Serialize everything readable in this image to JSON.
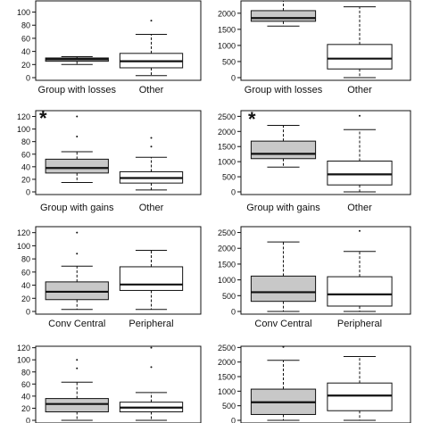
{
  "colors": {
    "highlight_fill": "#c8c8c8",
    "plain_fill": "#ffffff",
    "ink": "#111111"
  },
  "chart_data": [
    {
      "type": "box",
      "panel": "row1-left",
      "ylim": [
        0,
        120
      ],
      "yticks": [
        0,
        20,
        40,
        60,
        80,
        100
      ],
      "categories": [
        "Group with losses",
        "Other"
      ],
      "marker": "",
      "boxes": [
        {
          "label": "Group with losses",
          "fill": "shaded",
          "whisker_low": 20,
          "q1": 25,
          "median": 28,
          "q3": 30,
          "whisker_high": 32,
          "outliers": []
        },
        {
          "label": "Other",
          "fill": "plain",
          "whisker_low": 3,
          "q1": 15,
          "median": 25,
          "q3": 37,
          "whisker_high": 66,
          "outliers": [
            87
          ]
        }
      ]
    },
    {
      "type": "box",
      "panel": "row1-right",
      "ylim": [
        0,
        2500
      ],
      "yticks": [
        0,
        500,
        1000,
        1500,
        2000
      ],
      "marker": "",
      "categories": [
        "Group with losses",
        "Other"
      ],
      "boxes": [
        {
          "label": "Group with losses",
          "fill": "shaded",
          "whisker_low": 1600,
          "q1": 1750,
          "median": 1850,
          "q3": 2080,
          "whisker_high": 2400,
          "outliers": []
        },
        {
          "label": "Other",
          "fill": "plain",
          "whisker_low": 0,
          "q1": 270,
          "median": 590,
          "q3": 1030,
          "whisker_high": 2200,
          "outliers": []
        }
      ]
    },
    {
      "type": "box",
      "panel": "row2-left",
      "ylim": [
        0,
        120
      ],
      "yticks": [
        0,
        20,
        40,
        60,
        80,
        100,
        120
      ],
      "marker": "*",
      "categories": [
        "Group with gains",
        "Other"
      ],
      "boxes": [
        {
          "label": "Group with gains",
          "fill": "shaded",
          "whisker_low": 15,
          "q1": 30,
          "median": 38,
          "q3": 52,
          "whisker_high": 64,
          "outliers": [
            88,
            120
          ]
        },
        {
          "label": "Other",
          "fill": "plain",
          "whisker_low": 3,
          "q1": 14,
          "median": 22,
          "q3": 32,
          "whisker_high": 55,
          "outliers": [
            72,
            86
          ]
        }
      ]
    },
    {
      "type": "box",
      "panel": "row2-right",
      "ylim": [
        0,
        2500
      ],
      "yticks": [
        0,
        500,
        1000,
        1500,
        2000,
        2500
      ],
      "marker": "*",
      "categories": [
        "Group with gains",
        "Other"
      ],
      "boxes": [
        {
          "label": "Group with gains",
          "fill": "shaded",
          "whisker_low": 820,
          "q1": 1100,
          "median": 1260,
          "q3": 1680,
          "whisker_high": 2200,
          "outliers": []
        },
        {
          "label": "Other",
          "fill": "plain",
          "whisker_low": 0,
          "q1": 230,
          "median": 580,
          "q3": 1020,
          "whisker_high": 2060,
          "outliers": [
            2520
          ]
        }
      ]
    },
    {
      "type": "box",
      "panel": "row3-left",
      "ylim": [
        0,
        120
      ],
      "yticks": [
        0,
        20,
        40,
        60,
        80,
        100,
        120
      ],
      "marker": "",
      "categories": [
        "Conv Central",
        "Peripheral"
      ],
      "boxes": [
        {
          "label": "Conv Central",
          "fill": "shaded",
          "whisker_low": 3,
          "q1": 18,
          "median": 30,
          "q3": 45,
          "whisker_high": 69,
          "outliers": [
            88,
            120
          ]
        },
        {
          "label": "Peripheral",
          "fill": "plain",
          "whisker_low": 3,
          "q1": 32,
          "median": 41,
          "q3": 68,
          "whisker_high": 93,
          "outliers": []
        }
      ]
    },
    {
      "type": "box",
      "panel": "row3-right",
      "ylim": [
        0,
        2500
      ],
      "yticks": [
        0,
        500,
        1000,
        1500,
        2000,
        2500
      ],
      "marker": "",
      "categories": [
        "Conv Central",
        "Peripheral"
      ],
      "boxes": [
        {
          "label": "Conv Central",
          "fill": "shaded",
          "whisker_low": 0,
          "q1": 320,
          "median": 610,
          "q3": 1120,
          "whisker_high": 2200,
          "outliers": []
        },
        {
          "label": "Peripheral",
          "fill": "plain",
          "whisker_low": 0,
          "q1": 170,
          "median": 540,
          "q3": 1100,
          "whisker_high": 1900,
          "outliers": [
            2550
          ]
        }
      ]
    },
    {
      "type": "box",
      "panel": "row4-left",
      "ylim": [
        0,
        120
      ],
      "yticks": [
        0,
        20,
        40,
        60,
        80,
        100,
        120
      ],
      "marker": "",
      "categories": [],
      "boxes": [
        {
          "label": "",
          "fill": "shaded",
          "whisker_low": 0,
          "q1": 14,
          "median": 27,
          "q3": 36,
          "whisker_high": 63,
          "outliers": [
            86,
            100
          ]
        },
        {
          "label": "",
          "fill": "plain",
          "whisker_low": 0,
          "q1": 14,
          "median": 21,
          "q3": 30,
          "whisker_high": 46,
          "outliers": [
            88,
            120
          ]
        }
      ]
    },
    {
      "type": "box",
      "panel": "row4-right",
      "ylim": [
        0,
        2500
      ],
      "yticks": [
        0,
        500,
        1000,
        1500,
        2000,
        2500
      ],
      "marker": "",
      "categories": [],
      "boxes": [
        {
          "label": "",
          "fill": "shaded",
          "whisker_low": 0,
          "q1": 200,
          "median": 620,
          "q3": 1070,
          "whisker_high": 2060,
          "outliers": [
            2520
          ]
        },
        {
          "label": "",
          "fill": "plain",
          "whisker_low": 0,
          "q1": 330,
          "median": 850,
          "q3": 1280,
          "whisker_high": 2190,
          "outliers": []
        }
      ]
    }
  ]
}
